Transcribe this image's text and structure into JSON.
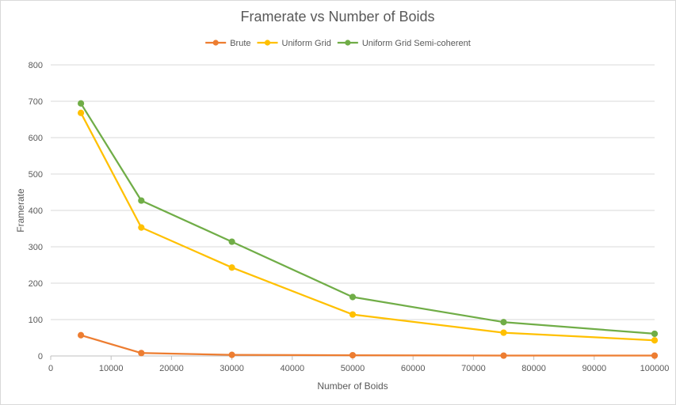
{
  "chart_data": {
    "type": "line",
    "title": "Framerate vs Number of Boids",
    "xlabel": "Number of Boids",
    "ylabel": "Framerate",
    "xlim": [
      0,
      100000
    ],
    "ylim": [
      0,
      800
    ],
    "x_ticks": [
      0,
      10000,
      20000,
      30000,
      40000,
      50000,
      60000,
      70000,
      80000,
      90000,
      100000
    ],
    "y_ticks": [
      0,
      100,
      200,
      300,
      400,
      500,
      600,
      700,
      800
    ],
    "grid": "horizontal",
    "legend_position": "top",
    "series": [
      {
        "name": "Brute",
        "color": "#ed7d31",
        "x": [
          5000,
          15000,
          30000,
          50000,
          75000,
          100000
        ],
        "y": [
          57,
          8,
          3,
          2,
          1,
          1
        ]
      },
      {
        "name": "Uniform Grid",
        "color": "#ffc000",
        "x": [
          5000,
          15000,
          30000,
          50000,
          75000,
          100000
        ],
        "y": [
          668,
          353,
          243,
          114,
          64,
          43
        ]
      },
      {
        "name": "Uniform Grid Semi-coherent",
        "color": "#70ad47",
        "x": [
          5000,
          15000,
          30000,
          50000,
          75000,
          100000
        ],
        "y": [
          694,
          427,
          314,
          162,
          93,
          61
        ]
      }
    ]
  }
}
